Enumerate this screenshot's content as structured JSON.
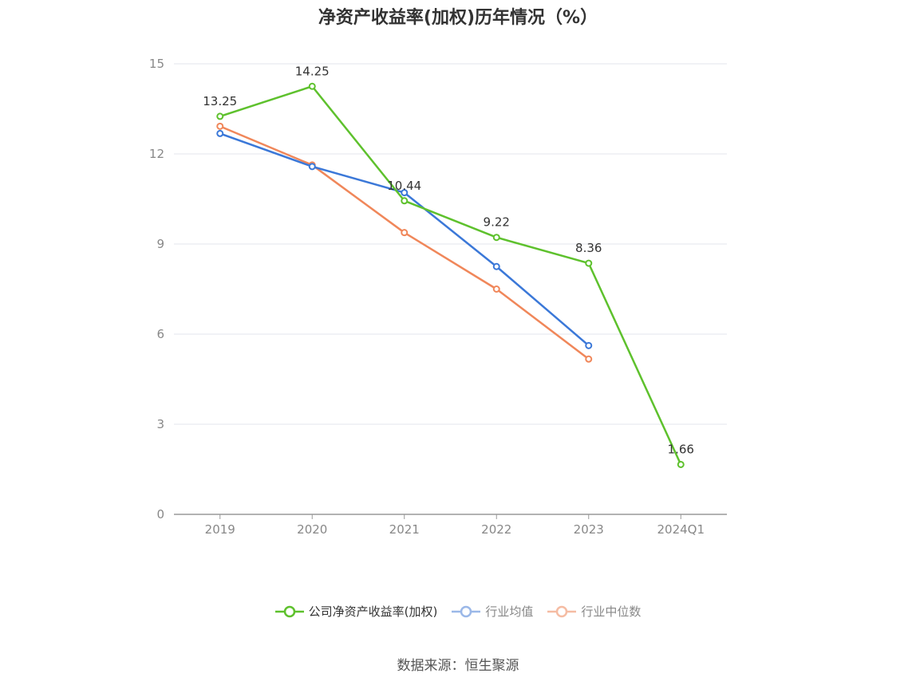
{
  "chart_data": {
    "type": "line",
    "title": "净资产收益率(加权)历年情况（%）",
    "categories": [
      "2019",
      "2020",
      "2021",
      "2022",
      "2023",
      "2024Q1"
    ],
    "y_ticks": [
      "0",
      "3",
      "6",
      "9",
      "12",
      "15"
    ],
    "ylim": [
      0,
      15
    ],
    "grid": true,
    "legend_position": "bottom",
    "series": [
      {
        "name": "公司净资产收益率(加权)",
        "color": "#5ec12d",
        "values": [
          13.25,
          14.25,
          10.44,
          9.22,
          8.36,
          1.66
        ],
        "labels": [
          "13.25",
          "14.25",
          "10.44",
          "9.22",
          "8.36",
          "1.66"
        ]
      },
      {
        "name": "行业均值",
        "color": "#3b78d8",
        "values": [
          12.68,
          11.58,
          10.71,
          8.25,
          5.62,
          null
        ]
      },
      {
        "name": "行业中位数",
        "color": "#f0875a",
        "values": [
          12.92,
          11.63,
          9.38,
          7.5,
          5.17,
          null
        ]
      }
    ]
  },
  "source": "数据来源：恒生聚源"
}
